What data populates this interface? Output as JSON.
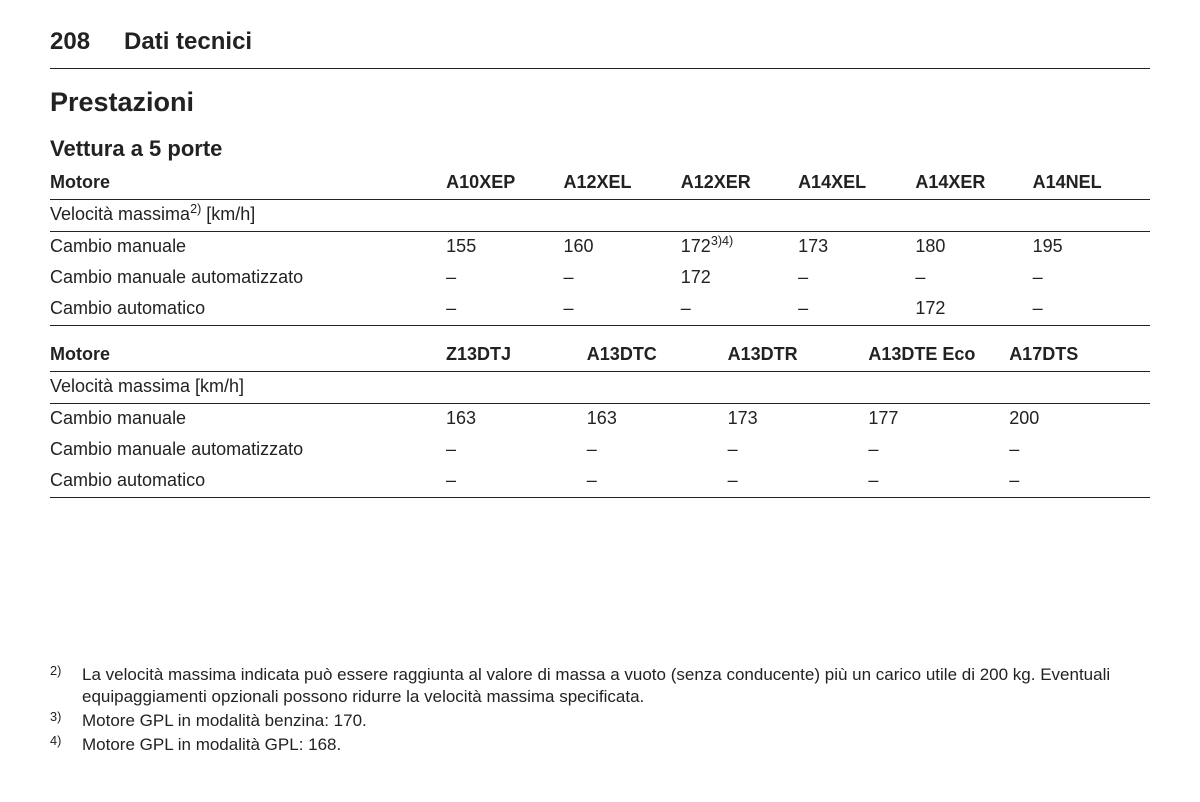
{
  "header": {
    "page": "208",
    "section": "Dati tecnici"
  },
  "titles": {
    "h1": "Prestazioni",
    "h2": "Vettura a 5 porte"
  },
  "table1": {
    "header": {
      "label": "Motore",
      "cols": [
        "A10XEP",
        "A12XEL",
        "A12XER",
        "A14XEL",
        "A14XER",
        "A14NEL"
      ]
    },
    "subheader_prefix": "Velocità massima",
    "subheader_sup": "2)",
    "subheader_suffix": " [km/h]",
    "rows": [
      {
        "label": "Cambio manuale",
        "vals": [
          "155",
          "160",
          "172",
          "173",
          "180",
          "195"
        ],
        "sup3": "3)4)"
      },
      {
        "label": "Cambio manuale automatizzato",
        "vals": [
          "–",
          "–",
          "172",
          "–",
          "–",
          "–"
        ]
      },
      {
        "label": "Cambio automatico",
        "vals": [
          "–",
          "–",
          "–",
          "–",
          "172",
          "–"
        ]
      }
    ]
  },
  "table2": {
    "header": {
      "label": "Motore",
      "cols": [
        "Z13DTJ",
        "A13DTC",
        "A13DTR",
        "A13DTE Eco",
        "A17DTS"
      ]
    },
    "subheader": "Velocità massima [km/h]",
    "rows": [
      {
        "label": "Cambio manuale",
        "vals": [
          "163",
          "163",
          "173",
          "177",
          "200"
        ]
      },
      {
        "label": "Cambio manuale automatizzato",
        "vals": [
          "–",
          "–",
          "–",
          "–",
          "–"
        ]
      },
      {
        "label": "Cambio automatico",
        "vals": [
          "–",
          "–",
          "–",
          "–",
          "–"
        ]
      }
    ]
  },
  "footnotes": [
    {
      "mark": "2)",
      "text": "La velocità massima indicata può essere raggiunta al valore di massa a vuoto (senza conducente) più un carico utile di 200 kg. Eventuali equipaggiamenti opzionali possono ridurre la velocità massima specificata."
    },
    {
      "mark": "3)",
      "text": "Motore GPL in modalità benzina: 170."
    },
    {
      "mark": "4)",
      "text": "Motore GPL in modalità GPL: 168."
    }
  ]
}
